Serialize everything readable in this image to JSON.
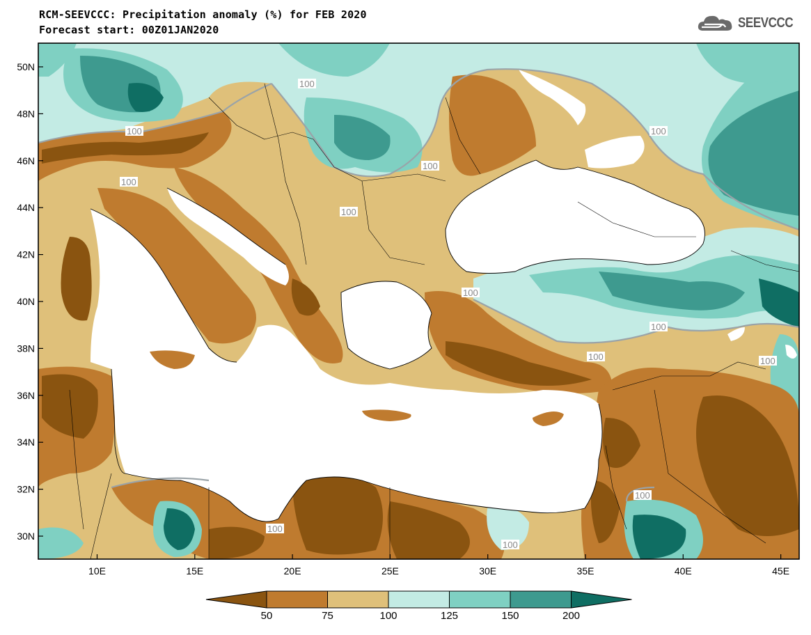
{
  "header": {
    "title": "RCM-SEEVCCC: Precipitation anomaly (%) for FEB 2020",
    "subtitle": "Forecast start: 00Z01JAN2020",
    "logo_text": "SEEVCCC"
  },
  "map": {
    "lat_labels": [
      "50N",
      "48N",
      "46N",
      "44N",
      "42N",
      "40N",
      "38N",
      "36N",
      "34N",
      "32N",
      "30N"
    ],
    "lon_labels": [
      "10E",
      "15E",
      "20E",
      "25E",
      "30E",
      "35E",
      "40E",
      "45E"
    ],
    "contour_label": "100",
    "colors": {
      "below_50": "#8a5410",
      "c50_75": "#bf7b2f",
      "c75_100": "#dfc07a",
      "c100_125": "#c3ebe4",
      "c125_150": "#7fd0c2",
      "c150_200": "#3e9a8f",
      "above_200": "#0f6e63",
      "sea": "#ffffff",
      "contour": "#9aa3a8"
    }
  },
  "colorbar": {
    "labels": [
      "50",
      "75",
      "100",
      "125",
      "150",
      "200"
    ],
    "colors": [
      "#8a5410",
      "#bf7b2f",
      "#dfc07a",
      "#c3ebe4",
      "#7fd0c2",
      "#3e9a8f",
      "#0f6e63"
    ]
  }
}
